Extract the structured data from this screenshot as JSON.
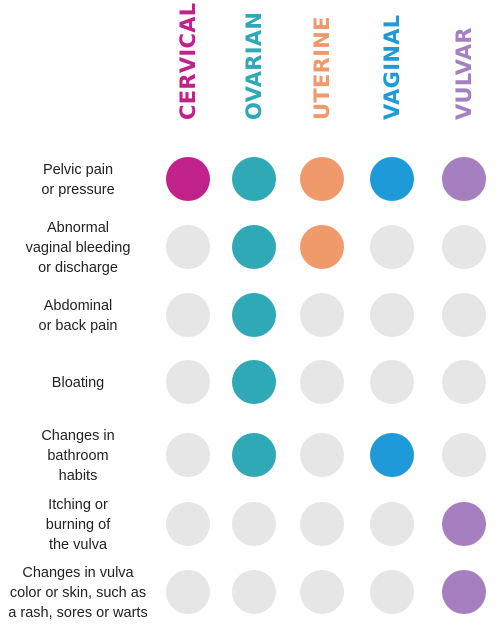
{
  "chart_data": {
    "type": "table",
    "columns": [
      {
        "name": "CERVICAL",
        "color": "#c0218b"
      },
      {
        "name": "OVARIAN",
        "color": "#2ea9b5"
      },
      {
        "name": "UTERINE",
        "color": "#f09a6c"
      },
      {
        "name": "VAGINAL",
        "color": "#1f9ad9"
      },
      {
        "name": "VULVAR",
        "color": "#a67fc0"
      }
    ],
    "rows": [
      {
        "label": [
          "Pelvic pain",
          "or pressure"
        ],
        "values": [
          1,
          1,
          1,
          1,
          1
        ]
      },
      {
        "label": [
          "Abnormal",
          "vaginal bleeding",
          "or discharge"
        ],
        "values": [
          0,
          1,
          1,
          0,
          0
        ]
      },
      {
        "label": [
          "Abdominal",
          "or back pain"
        ],
        "values": [
          0,
          1,
          0,
          0,
          0
        ]
      },
      {
        "label": [
          "Bloating"
        ],
        "values": [
          0,
          1,
          0,
          0,
          0
        ]
      },
      {
        "label": [
          "Changes in",
          "bathroom",
          "habits"
        ],
        "values": [
          0,
          1,
          0,
          1,
          0
        ]
      },
      {
        "label": [
          "Itching or",
          "burning of",
          "the vulva"
        ],
        "values": [
          0,
          0,
          0,
          0,
          1
        ]
      },
      {
        "label": [
          "Changes in vulva",
          "color or skin, such as",
          "a rash, sores or warts"
        ],
        "values": [
          0,
          0,
          0,
          0,
          1
        ]
      }
    ],
    "inactive_color": "#e6e6e6"
  }
}
